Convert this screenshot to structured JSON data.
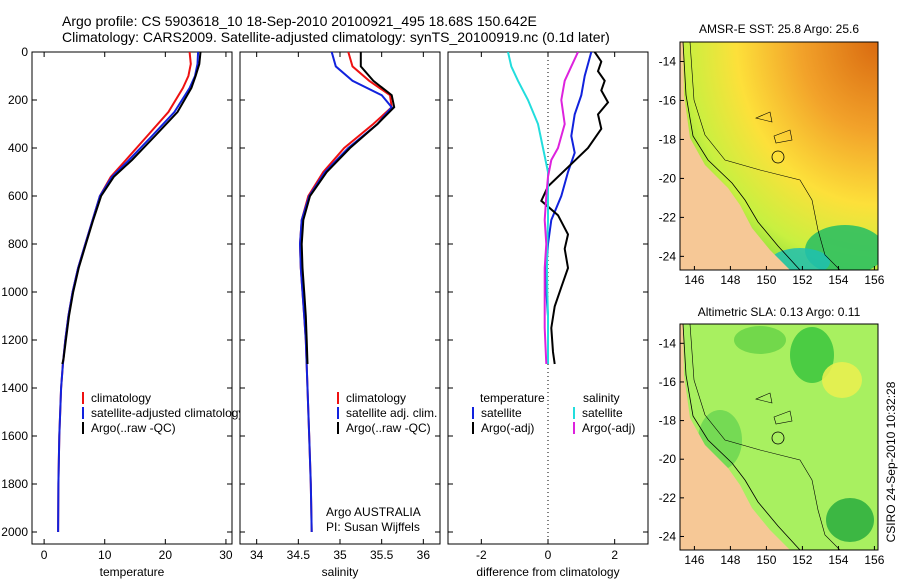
{
  "header": {
    "line1": "Argo profile: CS 5903618_10 18-Sep-2010 20100921_495 18.68S 150.642E",
    "line2": "Climatology: CARS2009. Satellite-adjusted climatology: synTS_20100919.nc (0.1d later)"
  },
  "side_text": "CSIRO 24-Sep-2010 10:32:28",
  "chart_data": [
    {
      "id": "temperature",
      "type": "line",
      "xlabel": "temperature",
      "ylabel": "",
      "xlim": [
        -2,
        31
      ],
      "ylim": [
        2050,
        0
      ],
      "xticks": [
        0,
        10,
        20,
        30
      ],
      "yticks": [
        0,
        200,
        400,
        600,
        800,
        1000,
        1200,
        1400,
        1600,
        1800,
        2000
      ],
      "legend_position": "lower-center",
      "series": [
        {
          "name": "climatology",
          "color": "#ee1111",
          "x": [
            24.0,
            24.2,
            23.8,
            22.9,
            20.5,
            17.0,
            13.5,
            11.0,
            9.2,
            8.0,
            6.8,
            5.6,
            4.7,
            4.0,
            3.5,
            3.1,
            2.8,
            2.5,
            2.35,
            2.3
          ],
          "y": [
            0,
            50,
            100,
            150,
            250,
            350,
            450,
            520,
            600,
            700,
            800,
            900,
            1000,
            1100,
            1200,
            1300,
            1400,
            1600,
            1800,
            2000
          ]
        },
        {
          "name": "satellite-adjusted climatology",
          "color": "#1122dd",
          "x": [
            25.4,
            25.3,
            24.9,
            24.0,
            21.5,
            17.8,
            14.0,
            11.2,
            9.2,
            8.0,
            6.8,
            5.6,
            4.7,
            4.0,
            3.5,
            3.1,
            2.8,
            2.5,
            2.35,
            2.3
          ],
          "y": [
            0,
            50,
            100,
            150,
            250,
            350,
            450,
            520,
            600,
            700,
            800,
            900,
            1000,
            1100,
            1200,
            1300,
            1400,
            1600,
            1800,
            2000
          ]
        },
        {
          "name": "Argo(..raw -QC)",
          "color": "#000000",
          "x": [
            25.8,
            25.6,
            25.0,
            24.3,
            22.0,
            18.3,
            14.5,
            11.5,
            9.4,
            8.1,
            6.9,
            5.7,
            4.8,
            4.1,
            3.6,
            3.2,
            3.0
          ],
          "y": [
            0,
            50,
            100,
            150,
            250,
            350,
            450,
            520,
            600,
            700,
            800,
            900,
            1000,
            1100,
            1200,
            1280,
            1300
          ]
        }
      ]
    },
    {
      "id": "salinity",
      "type": "line",
      "xlabel": "salinity",
      "ylabel": "",
      "xlim": [
        33.8,
        36.2
      ],
      "ylim": [
        2050,
        0
      ],
      "xticks": [
        34,
        34.5,
        35,
        35.5,
        36
      ],
      "yticks": [
        0,
        200,
        400,
        600,
        800,
        1000,
        1200,
        1400,
        1600,
        1800,
        2000
      ],
      "legend_position": "lower-center",
      "annotation": [
        "Argo AUSTRALIA",
        "PI: Susan Wijffels"
      ],
      "series": [
        {
          "name": "climatology",
          "color": "#ee1111",
          "x": [
            35.1,
            35.15,
            35.35,
            35.6,
            35.62,
            35.4,
            35.05,
            34.8,
            34.62,
            34.54,
            34.52,
            34.53,
            34.55,
            34.57,
            34.59,
            34.61,
            34.63,
            34.65,
            34.66
          ],
          "y": [
            0,
            60,
            120,
            180,
            230,
            300,
            400,
            500,
            600,
            700,
            800,
            900,
            1000,
            1100,
            1200,
            1400,
            1600,
            1800,
            2000
          ]
        },
        {
          "name": "satellite adj. clim.",
          "color": "#1122dd",
          "x": [
            34.9,
            34.95,
            35.15,
            35.5,
            35.62,
            35.45,
            35.1,
            34.82,
            34.63,
            34.54,
            34.52,
            34.53,
            34.55,
            34.57,
            34.59,
            34.61,
            34.63,
            34.65,
            34.66
          ],
          "y": [
            0,
            60,
            120,
            180,
            230,
            300,
            400,
            500,
            600,
            700,
            800,
            900,
            1000,
            1100,
            1200,
            1400,
            1600,
            1800,
            2000
          ]
        },
        {
          "name": "Argo(..raw -QC)",
          "color": "#000000",
          "x": [
            35.25,
            35.25,
            35.4,
            35.62,
            35.65,
            35.45,
            35.12,
            34.84,
            34.64,
            34.56,
            34.54,
            34.55,
            34.57,
            34.59,
            34.6,
            34.61
          ],
          "y": [
            0,
            60,
            120,
            180,
            230,
            300,
            400,
            500,
            600,
            700,
            800,
            900,
            1000,
            1100,
            1200,
            1300
          ]
        }
      ]
    },
    {
      "id": "difference",
      "type": "line",
      "xlabel": "difference from climatology",
      "ylabel": "",
      "xlim": [
        -3,
        3
      ],
      "ylim": [
        2050,
        0
      ],
      "xticks": [
        -2,
        0,
        2
      ],
      "yticks": [
        0,
        200,
        400,
        600,
        800,
        1000,
        1200,
        1400,
        1600,
        1800,
        2000
      ],
      "legend_position": "lower-center",
      "legend_headers": [
        "temperature",
        "salinity"
      ],
      "series": [
        {
          "name": "satellite",
          "group": "temperature",
          "color": "#1122dd",
          "x": [
            1.3,
            1.2,
            1.1,
            1.0,
            0.8,
            0.7,
            0.8,
            0.6,
            0.4,
            0.1,
            0.0,
            -0.05,
            -0.05,
            0.0,
            0.0,
            0.0
          ],
          "y": [
            0,
            50,
            100,
            180,
            260,
            350,
            420,
            500,
            600,
            700,
            800,
            900,
            1000,
            1100,
            1200,
            1300
          ]
        },
        {
          "name": "Argo(-adj)",
          "group": "temperature",
          "color": "#000000",
          "x": [
            1.4,
            1.6,
            1.5,
            1.7,
            1.6,
            1.8,
            1.5,
            1.6,
            1.2,
            0.6,
            0.0,
            -0.2,
            0.3,
            0.6,
            0.5,
            0.6,
            0.4,
            0.2,
            0.1,
            0.15,
            0.2
          ],
          "y": [
            0,
            40,
            80,
            120,
            160,
            210,
            260,
            320,
            400,
            480,
            560,
            620,
            680,
            760,
            820,
            900,
            980,
            1060,
            1150,
            1250,
            1300
          ]
        },
        {
          "name": "satellite",
          "group": "salinity",
          "color": "#22dddd",
          "x": [
            -1.2,
            -1.1,
            -0.9,
            -0.6,
            -0.3,
            -0.15,
            0.0,
            0.0,
            0.0,
            -0.02,
            -0.03,
            -0.02,
            0.0,
            0.0,
            0.0
          ],
          "y": [
            0,
            60,
            120,
            200,
            300,
            400,
            500,
            600,
            700,
            800,
            900,
            1000,
            1100,
            1200,
            1300
          ]
        },
        {
          "name": "Argo(-adj)",
          "group": "salinity",
          "color": "#dd22dd",
          "x": [
            0.9,
            0.7,
            0.5,
            0.4,
            0.5,
            0.3,
            0.1,
            0.0,
            -0.05,
            -0.1,
            -0.05,
            -0.1,
            -0.1,
            -0.1,
            -0.05
          ],
          "y": [
            0,
            60,
            120,
            200,
            300,
            400,
            450,
            520,
            600,
            700,
            800,
            900,
            1000,
            1150,
            1300
          ]
        }
      ]
    },
    {
      "id": "sst_map",
      "type": "heatmap",
      "title": "AMSR-E SST: 25.8 Argo: 25.6",
      "xlim": [
        145.2,
        156.2
      ],
      "ylim": [
        -24.7,
        -13.0
      ],
      "xticks": [
        146,
        148,
        150,
        152,
        154,
        156
      ],
      "yticks": [
        -14,
        -16,
        -18,
        -20,
        -22,
        -24
      ]
    },
    {
      "id": "sla_map",
      "type": "heatmap",
      "title": "Altimetric SLA: 0.13 Argo: 0.11",
      "xlim": [
        145.2,
        156.2
      ],
      "ylim": [
        -24.7,
        -13.0
      ],
      "xticks": [
        146,
        148,
        150,
        152,
        154,
        156
      ],
      "yticks": [
        -14,
        -16,
        -18,
        -20,
        -22,
        -24
      ]
    }
  ]
}
